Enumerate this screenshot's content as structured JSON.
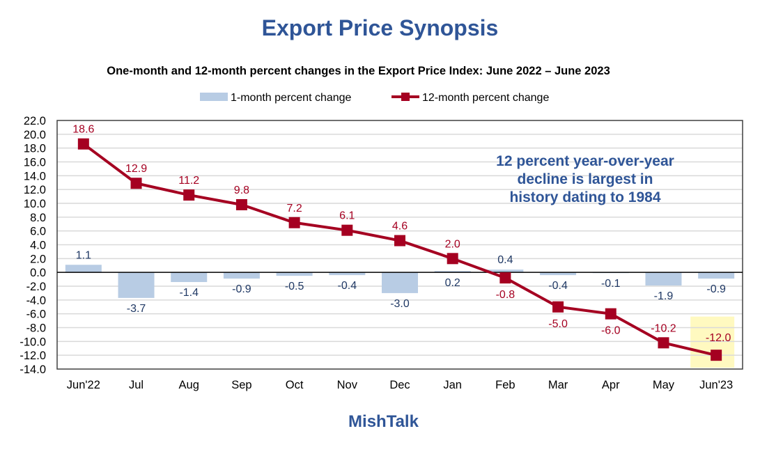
{
  "chart_data": {
    "type": "bar+line",
    "title": "Export Price Synopsis",
    "subtitle": "One-month and 12-month percent changes in the Export Price Index: June 2022 – June 2023",
    "categories": [
      "Jun'22",
      "Jul",
      "Aug",
      "Sep",
      "Oct",
      "Nov",
      "Dec",
      "Jan",
      "Feb",
      "Mar",
      "Apr",
      "May",
      "Jun'23"
    ],
    "series": [
      {
        "name": "1-month percent change",
        "type": "bar",
        "color": "#b8cce4",
        "label_color": "#1f3864",
        "values": [
          1.1,
          -3.7,
          -1.4,
          -0.9,
          -0.5,
          -0.4,
          -3.0,
          0.2,
          0.4,
          -0.4,
          -0.1,
          -1.9,
          -0.9
        ]
      },
      {
        "name": "12-month percent change",
        "type": "line",
        "color": "#a50021",
        "label_color": "#a50021",
        "values": [
          18.6,
          12.9,
          11.2,
          9.8,
          7.2,
          6.1,
          4.6,
          2.0,
          -0.8,
          -5.0,
          -6.0,
          -10.2,
          -12.0
        ]
      }
    ],
    "ylim": [
      -14,
      22
    ],
    "yticks": [
      "22.0",
      "20.0",
      "18.0",
      "16.0",
      "14.0",
      "12.0",
      "10.0",
      "8.0",
      "6.0",
      "4.0",
      "2.0",
      "0.0",
      "-2.0",
      "-4.0",
      "-6.0",
      "-8.0",
      "-10.0",
      "-12.0",
      "-14.0"
    ],
    "grid": true,
    "legend_position": "top-center",
    "annotation": [
      "12 percent year-over-year",
      "decline is largest in",
      "history dating to 1984"
    ],
    "annotation_color": "#2f5597",
    "highlight": {
      "category": "Jun'23",
      "color": "#fff9c0"
    }
  },
  "footer": "MishTalk"
}
